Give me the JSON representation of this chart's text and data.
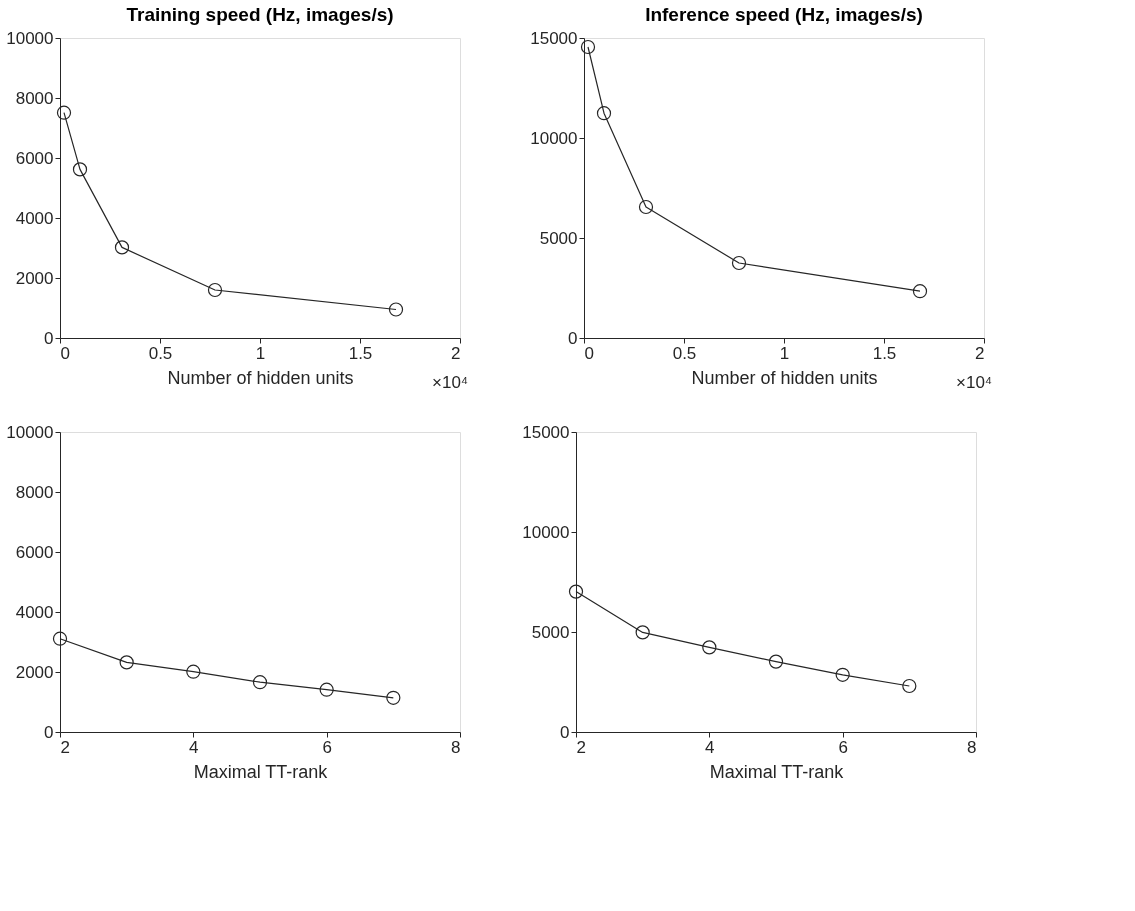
{
  "chart_data": [
    {
      "type": "line",
      "title": "Training speed (Hz, images/s)",
      "xlabel": "Number of hidden units",
      "annotations": [
        "×10⁴"
      ],
      "x": [
        0.02,
        0.1,
        0.31,
        0.775,
        1.68
      ],
      "series": [
        {
          "color": "#262626",
          "values": [
            7510,
            5620,
            3020,
            1600,
            950
          ]
        }
      ],
      "xlim": [
        0,
        2
      ],
      "xticks": [
        0,
        0.5,
        1,
        1.5,
        2
      ],
      "ylim": [
        0,
        10000
      ],
      "yticks": [
        0,
        2000,
        4000,
        6000,
        8000,
        10000
      ],
      "grid": false,
      "marker": "circle",
      "line_style": "solid"
    },
    {
      "type": "line",
      "title": "Inference speed (Hz, images/s)",
      "xlabel": "Number of hidden units",
      "annotations": [
        "×10⁴"
      ],
      "x": [
        0.02,
        0.1,
        0.31,
        0.775,
        1.68
      ],
      "series": [
        {
          "color": "#262626",
          "values": [
            14550,
            11240,
            6550,
            3750,
            2340
          ]
        }
      ],
      "xlim": [
        0,
        2
      ],
      "xticks": [
        0,
        0.5,
        1,
        1.5,
        2
      ],
      "ylim": [
        0,
        15000
      ],
      "yticks": [
        0,
        5000,
        10000,
        15000
      ],
      "grid": false,
      "marker": "circle",
      "line_style": "solid"
    },
    {
      "type": "line",
      "xlabel": "Maximal TT-rank",
      "x": [
        2,
        3,
        4,
        5,
        6,
        7
      ],
      "series": [
        {
          "color": "#262626",
          "values": [
            3110,
            2320,
            2010,
            1660,
            1410,
            1140
          ]
        }
      ],
      "xlim": [
        2,
        8
      ],
      "xticks": [
        2,
        4,
        6,
        8
      ],
      "ylim": [
        0,
        10000
      ],
      "yticks": [
        0,
        2000,
        4000,
        6000,
        8000,
        10000
      ],
      "grid": false,
      "marker": "circle",
      "line_style": "solid"
    },
    {
      "type": "line",
      "xlabel": "Maximal TT-rank",
      "x": [
        2,
        3,
        4,
        5,
        6,
        7
      ],
      "series": [
        {
          "color": "#262626",
          "values": [
            7020,
            4980,
            4230,
            3520,
            2860,
            2300
          ]
        }
      ],
      "xlim": [
        2,
        8
      ],
      "xticks": [
        2,
        4,
        6,
        8
      ],
      "ylim": [
        0,
        15000
      ],
      "yticks": [
        0,
        5000,
        10000,
        15000
      ],
      "grid": false,
      "marker": "circle",
      "line_style": "solid"
    }
  ]
}
